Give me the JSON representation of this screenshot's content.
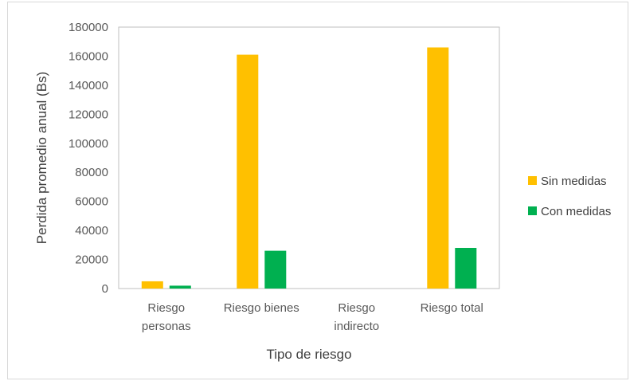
{
  "chart_data": {
    "type": "bar",
    "title": "",
    "xlabel": "Tipo de riesgo",
    "ylabel": "Perdida promedio anual (Bs)",
    "ylim": [
      0,
      180000
    ],
    "yticks": [
      0,
      20000,
      40000,
      60000,
      80000,
      100000,
      120000,
      140000,
      160000,
      180000
    ],
    "categories": [
      [
        "Riesgo",
        "personas"
      ],
      [
        "Riesgo bienes"
      ],
      [
        "Riesgo",
        "indirecto"
      ],
      [
        "Riesgo total"
      ]
    ],
    "series": [
      {
        "name": "Sin medidas",
        "color": "#FFC000",
        "values": [
          5000,
          161000,
          0,
          166000
        ]
      },
      {
        "name": "Con medidas",
        "color": "#00B050",
        "values": [
          2000,
          26000,
          0,
          28000
        ]
      }
    ],
    "grid": false,
    "legend_position": "right"
  }
}
